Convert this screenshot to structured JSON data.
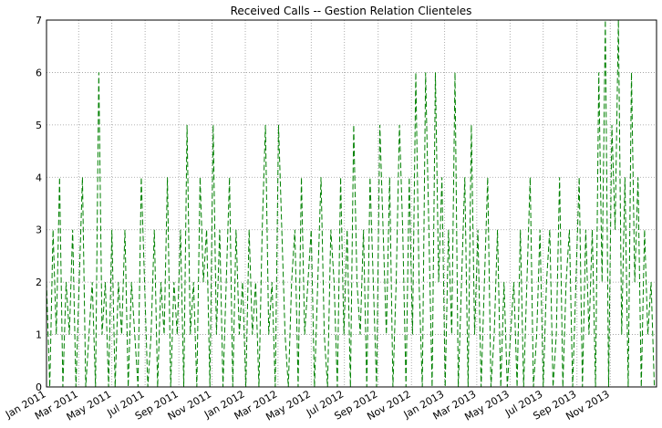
{
  "chart_data": {
    "type": "line",
    "title": "Received Calls -- Gestion Relation Clienteles",
    "x": [
      0,
      6,
      12,
      18,
      24,
      30,
      36,
      42,
      48,
      54,
      60,
      66,
      72,
      78,
      84,
      90,
      96,
      102,
      108,
      114,
      120,
      126,
      132,
      138,
      144,
      150,
      156,
      162,
      168,
      174,
      180,
      186,
      192,
      198,
      204,
      210,
      216,
      222,
      228,
      234,
      240,
      246,
      252,
      258,
      264,
      270,
      276,
      282,
      288,
      294,
      300,
      306,
      312,
      318,
      324,
      330,
      336,
      342,
      348,
      354,
      360,
      366,
      372,
      378,
      384,
      390,
      396,
      402,
      408,
      414,
      420,
      426,
      432,
      438,
      444,
      450,
      456,
      462,
      468,
      474,
      480,
      486,
      492,
      498,
      504,
      510,
      516,
      522,
      528,
      534,
      540,
      546,
      552,
      558,
      564,
      570,
      576,
      582,
      588,
      594,
      600,
      606,
      612,
      618,
      624,
      630,
      636,
      642,
      648,
      654,
      660,
      666,
      672,
      678,
      684,
      690,
      696,
      702,
      708,
      714,
      720,
      726,
      732,
      738,
      744,
      750,
      756,
      762,
      768,
      774,
      780,
      786,
      792,
      798,
      804,
      810,
      816,
      822,
      828,
      834,
      840,
      846,
      852,
      858,
      864,
      870,
      876,
      882,
      888,
      894,
      900,
      906,
      912,
      918,
      924,
      930,
      936,
      942,
      948,
      954,
      960,
      966,
      972,
      978,
      984,
      990,
      996,
      1002,
      1008,
      1014,
      1020,
      1026,
      1032,
      1038,
      1044,
      1050,
      1056,
      1062,
      1068,
      1074,
      1080,
      1086,
      1092,
      1098,
      1104,
      1110,
      1116
    ],
    "series": [
      {
        "color": "#008000",
        "values": [
          2,
          0,
          3,
          1,
          4,
          0,
          2,
          1,
          3,
          0,
          2,
          4,
          0,
          1,
          2,
          0,
          6,
          1,
          2,
          0,
          3,
          0,
          2,
          1,
          3,
          0,
          2,
          1,
          0,
          4,
          2,
          0,
          1,
          3,
          0,
          2,
          1,
          4,
          0,
          2,
          1,
          3,
          0,
          5,
          1,
          2,
          0,
          4,
          2,
          3,
          0,
          5,
          1,
          3,
          0,
          2,
          4,
          0,
          3,
          1,
          2,
          0,
          3,
          1,
          2,
          0,
          3,
          5,
          1,
          2,
          0,
          5,
          3,
          1,
          0,
          2,
          3,
          0,
          4,
          1,
          2,
          3,
          0,
          2,
          4,
          1,
          0,
          3,
          2,
          0,
          4,
          1,
          3,
          0,
          5,
          2,
          1,
          3,
          0,
          4,
          2,
          0,
          5,
          3,
          1,
          4,
          0,
          2,
          5,
          3,
          0,
          4,
          1,
          6,
          2,
          0,
          6,
          3,
          0,
          6,
          2,
          4,
          0,
          3,
          1,
          6,
          0,
          2,
          4,
          0,
          5,
          1,
          3,
          0,
          2,
          4,
          0,
          1,
          3,
          0,
          2,
          0,
          1,
          2,
          0,
          3,
          0,
          2,
          4,
          0,
          1,
          3,
          0,
          2,
          3,
          0,
          1,
          4,
          0,
          2,
          3,
          0,
          2,
          4,
          0,
          3,
          1,
          3,
          0,
          6,
          2,
          7,
          0,
          5,
          3,
          7,
          1,
          4,
          0,
          6,
          2,
          4,
          0,
          3,
          1,
          2,
          0
        ]
      }
    ],
    "xlim": [
      0,
      1120
    ],
    "xticks": [
      {
        "value": 0,
        "label": "Jan 2011"
      },
      {
        "value": 59,
        "label": "Mar 2011"
      },
      {
        "value": 120,
        "label": "May 2011"
      },
      {
        "value": 181,
        "label": "Jul 2011"
      },
      {
        "value": 243,
        "label": "Sep 2011"
      },
      {
        "value": 304,
        "label": "Nov 2011"
      },
      {
        "value": 365,
        "label": "Jan 2012"
      },
      {
        "value": 425,
        "label": "Mar 2012"
      },
      {
        "value": 486,
        "label": "May 2012"
      },
      {
        "value": 547,
        "label": "Jul 2012"
      },
      {
        "value": 609,
        "label": "Sep 2012"
      },
      {
        "value": 670,
        "label": "Nov 2012"
      },
      {
        "value": 731,
        "label": "Jan 2013"
      },
      {
        "value": 790,
        "label": "Mar 2013"
      },
      {
        "value": 851,
        "label": "May 2013"
      },
      {
        "value": 912,
        "label": "Jul 2013"
      },
      {
        "value": 974,
        "label": "Sep 2013"
      },
      {
        "value": 1035,
        "label": "Nov 2013"
      }
    ],
    "ylim": [
      0,
      7
    ],
    "yticks": [
      0,
      1,
      2,
      3,
      4,
      5,
      6,
      7
    ],
    "grid": true
  }
}
